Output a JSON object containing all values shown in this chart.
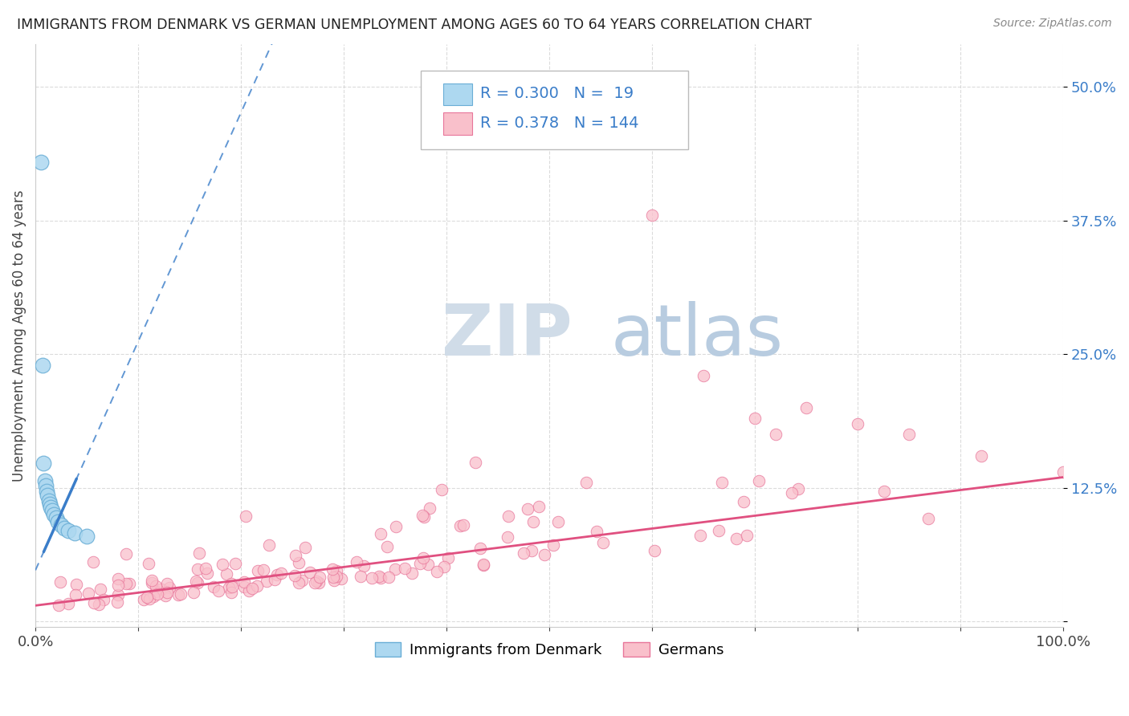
{
  "title": "IMMIGRANTS FROM DENMARK VS GERMAN UNEMPLOYMENT AMONG AGES 60 TO 64 YEARS CORRELATION CHART",
  "source": "Source: ZipAtlas.com",
  "ylabel": "Unemployment Among Ages 60 to 64 years",
  "xlim": [
    0,
    1.0
  ],
  "ylim": [
    -0.005,
    0.54
  ],
  "legend_blue_r": "0.300",
  "legend_blue_n": "19",
  "legend_pink_r": "0.378",
  "legend_pink_n": "144",
  "blue_color": "#ADD8F0",
  "blue_edge_color": "#6AAED6",
  "pink_color": "#F9C0CB",
  "pink_edge_color": "#E8769A",
  "blue_line_color": "#3A7DC9",
  "pink_line_color": "#E05080",
  "watermark_zip_color": "#C8D8E8",
  "watermark_atlas_color": "#A8C4DC",
  "background_color": "#FFFFFF",
  "grid_color": "#CCCCCC",
  "title_color": "#222222",
  "source_color": "#888888",
  "axis_label_color": "#444444",
  "tick_color": "#3A7DC9",
  "legend_text_color": "#333333",
  "legend_value_color": "#3A7DC9"
}
